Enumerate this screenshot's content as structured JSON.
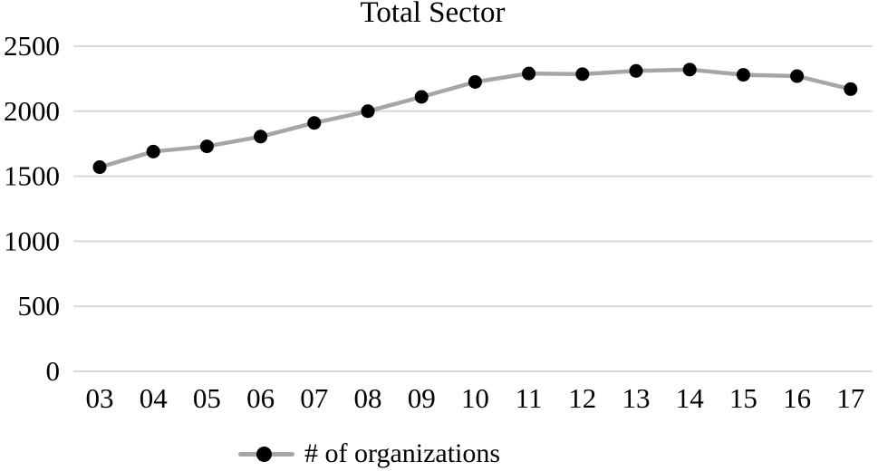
{
  "chart_data": {
    "type": "line",
    "title": "Total Sector",
    "categories": [
      "03",
      "04",
      "05",
      "06",
      "07",
      "08",
      "09",
      "10",
      "11",
      "12",
      "13",
      "14",
      "15",
      "16",
      "17"
    ],
    "series": [
      {
        "name": "# of organizations",
        "values": [
          1570,
          1690,
          1730,
          1805,
          1910,
          2000,
          2110,
          2225,
          2290,
          2285,
          2310,
          2320,
          2280,
          2270,
          2170
        ]
      }
    ],
    "xlabel": "",
    "ylabel": "",
    "ylim": [
      0,
      2500
    ],
    "yticks": [
      0,
      500,
      1000,
      1500,
      2000,
      2500
    ],
    "grid": "horizontal",
    "legend_position": "bottom",
    "colors": {
      "line": "#a6a6a6",
      "marker": "#000000",
      "gridline": "#d9d9d9",
      "text": "#000000",
      "background": "#ffffff"
    }
  }
}
